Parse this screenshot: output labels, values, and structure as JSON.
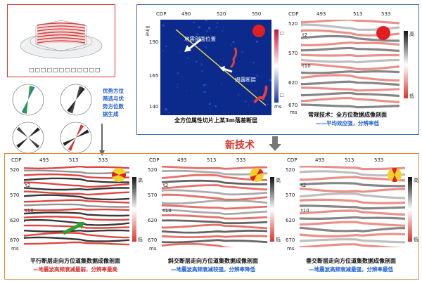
{
  "model_panel": {
    "box_label": "□□□□□□□□□□□□"
  },
  "rose_panel": {
    "caption": "优势方位筛选与优势方位数据生成"
  },
  "attribute_map": {
    "cdp_label": "CDP",
    "cdp_ticks": [
      "490",
      "520",
      "550"
    ],
    "iline_label": "iline",
    "iline_ticks": [
      "190",
      "165",
      "140"
    ],
    "annotation_fault_position": "地震剖面位置",
    "annotation_revealed_fault": "揭露断层",
    "caption": "全方位属性切片上某3m落差断层",
    "colorbar_unit": "ms",
    "colorbar_markers": [
      "□",
      "□"
    ]
  },
  "conventional": {
    "cdp_label": "CDP",
    "cdp_ticks": [
      "493",
      "513",
      "533"
    ],
    "time_ticks": [
      "520",
      "570",
      "620",
      "670"
    ],
    "time_unit": "ms",
    "horizon_labels": [
      "t2",
      "t10"
    ],
    "colorbar_high": "高",
    "colorbar_low": "低",
    "caption_title": "常规技术：全方位数据成像剖面",
    "caption_sub": "——平均效应强，分辨率低"
  },
  "new_tech_label": "新技术",
  "sections": [
    {
      "cdp_label": "CDP",
      "cdp_ticks": [
        "493",
        "513",
        "533"
      ],
      "time_ticks": [
        "520",
        "570",
        "620",
        "670"
      ],
      "time_unit": "ms",
      "horizon_labels": [
        "t2",
        "t10"
      ],
      "colorbar_high": "高",
      "colorbar_low": "低",
      "caption_title": "平行断层走向方位道集数据成像剖面",
      "caption_sub": "—地震波高频衰减最弱，分辨率最高"
    },
    {
      "cdp_label": "CDP",
      "cdp_ticks": [
        "493",
        "513",
        "533"
      ],
      "time_ticks": [
        "520",
        "570",
        "620",
        "670"
      ],
      "time_unit": "ms",
      "horizon_labels": [
        "t2",
        "t10"
      ],
      "colorbar_high": "高",
      "colorbar_low": "低",
      "caption_title": "斜交断层走向方位道集数据成像剖面",
      "caption_sub": "—地震波高频衰减较强，分辨率降低"
    },
    {
      "cdp_label": "CDP",
      "cdp_ticks": [
        "493",
        "513",
        "533"
      ],
      "time_ticks": [
        "520",
        "570",
        "620",
        "670"
      ],
      "time_unit": "ms",
      "horizon_labels": [
        "t2",
        "t10"
      ],
      "colorbar_high": "高",
      "colorbar_low": "低",
      "caption_title": "垂交断层走向方位道集数据成像剖面",
      "caption_sub": "—地震波高频衰减最强，分辨率最低"
    }
  ],
  "colors": {
    "blue_frame": "#3a6fb0",
    "orange_frame": "#e08a3a",
    "red_accent": "#d8342c",
    "caption_blue": "#1f5fd0",
    "map_background": "#0b2a8c"
  }
}
